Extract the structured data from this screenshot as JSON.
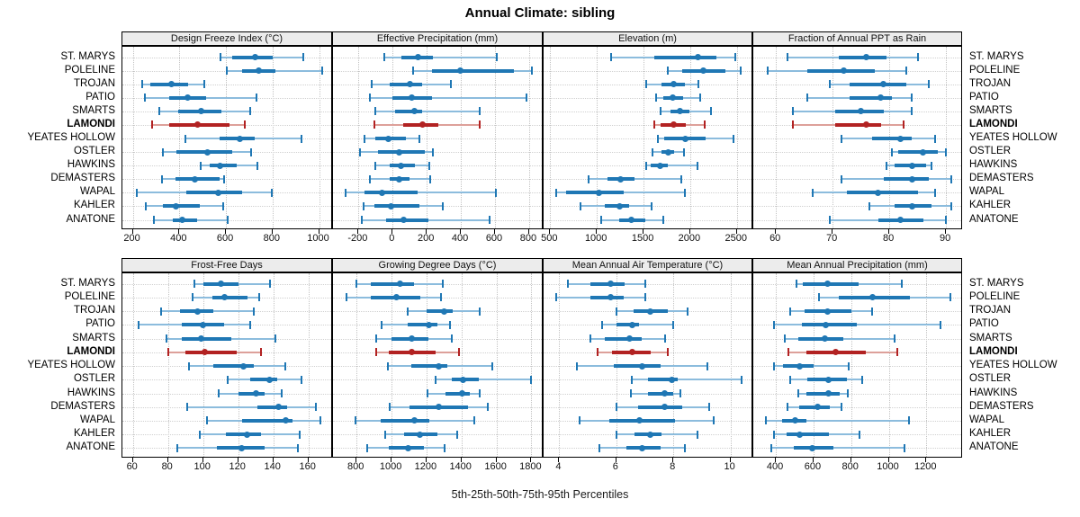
{
  "title": "Annual Climate: sibling",
  "footer": "5th-25th-50th-75th-95th Percentiles",
  "colors": {
    "series_blue": "#1f77b4",
    "series_blue_light": "#8cbcdd",
    "highlight_red": "#b22222",
    "highlight_red_light": "#dda09a",
    "grid": "#c9c9c9",
    "strip_bg": "#ececec",
    "border": "#000000"
  },
  "chart_data": {
    "type": "trellis-percentile-interval",
    "percentiles_shown": [
      5,
      25,
      50,
      75,
      95
    ],
    "legend_note": "dot = 50th percentile, thick bar = 25th-75th, thin whisker = 5th-95th",
    "stations": [
      "ST. MARYS",
      "POLELINE",
      "TROJAN",
      "PATIO",
      "SMARTS",
      "LAMONDI",
      "YEATES HOLLOW",
      "OSTLER",
      "HAWKINS",
      "DEMASTERS",
      "WAPAL",
      "KAHLER",
      "ANATONE"
    ],
    "highlight_station": "LAMONDI",
    "panels": [
      {
        "title": "Design Freeze Index (°C)",
        "ticks": [
          200,
          400,
          600,
          800,
          1000
        ],
        "domain": [
          155,
          1060
        ],
        "values": [
          [
            577,
            626,
            727,
            801,
            933
          ],
          [
            603,
            671,
            742,
            814,
            1012
          ],
          [
            240,
            274,
            364,
            438,
            505
          ],
          [
            253,
            354,
            434,
            516,
            732
          ],
          [
            315,
            393,
            494,
            580,
            704
          ],
          [
            283,
            357,
            477,
            617,
            680
          ],
          [
            425,
            574,
            658,
            723,
            924
          ],
          [
            328,
            386,
            522,
            626,
            706
          ],
          [
            493,
            529,
            574,
            645,
            736
          ],
          [
            326,
            383,
            467,
            574,
            590
          ],
          [
            218,
            429,
            565,
            671,
            797
          ],
          [
            257,
            328,
            383,
            486,
            587
          ],
          [
            292,
            370,
            412,
            477,
            606
          ]
        ]
      },
      {
        "title": "Effective Precipitation (mm)",
        "ticks": [
          -200,
          0,
          200,
          400,
          600,
          800
        ],
        "domain": [
          -350,
          885
        ],
        "values": [
          [
            -50,
            50,
            150,
            235,
            610
          ],
          [
            120,
            230,
            395,
            710,
            815
          ],
          [
            -125,
            -20,
            100,
            170,
            340
          ],
          [
            -135,
            0,
            110,
            230,
            785
          ],
          [
            -100,
            15,
            125,
            175,
            510
          ],
          [
            -105,
            60,
            175,
            270,
            510
          ],
          [
            -165,
            -100,
            -25,
            75,
            155
          ],
          [
            -190,
            -85,
            37,
            190,
            235
          ],
          [
            -100,
            -20,
            50,
            130,
            214
          ],
          [
            -133,
            -16,
            37,
            97,
            218
          ],
          [
            -275,
            -165,
            -60,
            145,
            605
          ],
          [
            -170,
            -110,
            -10,
            155,
            295
          ],
          [
            -180,
            -40,
            65,
            210,
            570
          ]
        ]
      },
      {
        "title": "Elevation (m)",
        "ticks": [
          500,
          1000,
          1500,
          2000,
          2500
        ],
        "domain": [
          430,
          2675
        ],
        "values": [
          [
            1150,
            1615,
            2080,
            2280,
            2480
          ],
          [
            1760,
            1910,
            2140,
            2380,
            2540
          ],
          [
            1530,
            1695,
            1825,
            1940,
            2085
          ],
          [
            1635,
            1710,
            1810,
            1920,
            2110
          ],
          [
            1680,
            1790,
            1890,
            1990,
            2220
          ],
          [
            1610,
            1680,
            1825,
            1955,
            2150
          ],
          [
            1655,
            1725,
            1950,
            2165,
            2460
          ],
          [
            1600,
            1695,
            1765,
            1825,
            1930
          ],
          [
            1525,
            1580,
            1680,
            1760,
            2080
          ],
          [
            915,
            1110,
            1255,
            1400,
            1905
          ],
          [
            560,
            670,
            1020,
            1290,
            1940
          ],
          [
            825,
            1080,
            1245,
            1340,
            1590
          ],
          [
            1050,
            1240,
            1370,
            1515,
            1710
          ]
        ]
      },
      {
        "title": "Fraction of Annual PPT as Rain",
        "ticks": [
          60,
          70,
          80,
          90
        ],
        "domain": [
          56,
          93
        ],
        "values": [
          [
            62,
            71,
            76,
            79.5,
            85
          ],
          [
            58.5,
            65.5,
            72,
            77.5,
            83
          ],
          [
            69.5,
            73,
            79,
            83,
            87
          ],
          [
            65.5,
            73,
            78.5,
            80.5,
            84
          ],
          [
            63,
            70.5,
            75,
            79,
            84
          ],
          [
            63,
            70.5,
            76,
            78.5,
            82.5
          ],
          [
            71.5,
            77,
            82,
            84,
            88
          ],
          [
            80.5,
            81.5,
            86,
            88.5,
            90
          ],
          [
            79.5,
            81,
            84,
            86.5,
            87.5
          ],
          [
            71.5,
            79,
            84,
            87,
            91
          ],
          [
            66.5,
            72.5,
            78,
            85,
            88
          ],
          [
            76.5,
            81,
            84,
            87.5,
            91
          ],
          [
            69.5,
            78,
            82,
            86,
            90
          ]
        ]
      },
      {
        "title": "Frost-Free Days",
        "ticks": [
          60,
          80,
          100,
          120,
          140,
          160
        ],
        "domain": [
          54,
          174
        ],
        "values": [
          [
            95,
            100,
            110,
            120,
            138
          ],
          [
            94,
            105,
            112,
            125,
            132
          ],
          [
            76,
            87,
            97,
            106,
            129
          ],
          [
            63,
            88,
            100,
            112,
            127
          ],
          [
            79,
            88,
            99,
            116,
            141
          ],
          [
            80,
            90,
            101,
            119,
            133
          ],
          [
            92,
            106,
            123,
            129,
            147
          ],
          [
            114,
            127,
            138,
            142,
            156
          ],
          [
            109,
            120,
            130,
            135,
            145
          ],
          [
            91,
            131,
            143,
            148,
            164
          ],
          [
            102,
            122,
            147,
            151,
            167
          ],
          [
            98,
            113,
            125,
            133,
            155
          ],
          [
            85,
            108,
            122,
            135,
            154
          ]
        ]
      },
      {
        "title": "Growing Degree Days (°C)",
        "ticks": [
          800,
          1000,
          1200,
          1400,
          1600,
          1800
        ],
        "domain": [
          665,
          1870
        ],
        "values": [
          [
            800,
            880,
            1050,
            1130,
            1295
          ],
          [
            740,
            880,
            1030,
            1165,
            1285
          ],
          [
            1090,
            1200,
            1300,
            1350,
            1505
          ],
          [
            945,
            1090,
            1215,
            1260,
            1335
          ],
          [
            910,
            1000,
            1115,
            1210,
            1345
          ],
          [
            910,
            985,
            1115,
            1250,
            1385
          ],
          [
            980,
            1115,
            1270,
            1320,
            1575
          ],
          [
            1250,
            1345,
            1410,
            1500,
            1800
          ],
          [
            1205,
            1310,
            1405,
            1450,
            1505
          ],
          [
            990,
            1105,
            1270,
            1440,
            1550
          ],
          [
            795,
            940,
            1130,
            1215,
            1475
          ],
          [
            965,
            1070,
            1160,
            1265,
            1375
          ],
          [
            860,
            985,
            1095,
            1185,
            1305
          ]
        ]
      },
      {
        "title": "Mean Annual Air Temperature (°C)",
        "ticks": [
          4,
          6,
          8,
          10
        ],
        "domain": [
          3.45,
          10.8
        ],
        "values": [
          [
            4.3,
            5.1,
            5.8,
            6.3,
            7.0
          ],
          [
            3.9,
            5.1,
            5.8,
            6.25,
            7.0
          ],
          [
            6.0,
            6.6,
            7.2,
            7.8,
            8.5
          ],
          [
            5.5,
            6.0,
            6.55,
            6.8,
            8.0
          ],
          [
            5.1,
            5.6,
            6.45,
            6.9,
            7.7
          ],
          [
            5.35,
            5.85,
            6.55,
            7.2,
            7.8
          ],
          [
            4.6,
            5.9,
            6.9,
            7.55,
            9.2
          ],
          [
            6.55,
            7.1,
            7.95,
            8.15,
            10.4
          ],
          [
            6.5,
            7.1,
            7.7,
            8.0,
            8.25
          ],
          [
            6.0,
            6.75,
            7.7,
            8.3,
            9.25
          ],
          [
            4.7,
            5.75,
            6.8,
            8.05,
            9.4
          ],
          [
            6.0,
            6.65,
            7.2,
            7.6,
            8.85
          ],
          [
            5.4,
            6.35,
            6.9,
            7.55,
            8.4
          ]
        ]
      },
      {
        "title": "Mean Annual Precipitation (mm)",
        "ticks": [
          400,
          600,
          800,
          1000,
          1200
        ],
        "domain": [
          280,
          1395
        ],
        "values": [
          [
            510,
            545,
            675,
            840,
            1070
          ],
          [
            627,
            733,
            912,
            1112,
            1330
          ],
          [
            477,
            552,
            675,
            800,
            910
          ],
          [
            392,
            540,
            665,
            830,
            1275
          ],
          [
            448,
            520,
            660,
            760,
            1030
          ],
          [
            467,
            560,
            720,
            880,
            1045
          ],
          [
            392,
            440,
            525,
            600,
            785
          ],
          [
            477,
            568,
            680,
            776,
            860
          ],
          [
            520,
            563,
            680,
            741,
            780
          ],
          [
            461,
            525,
            624,
            688,
            750
          ],
          [
            349,
            435,
            504,
            563,
            1107
          ],
          [
            392,
            456,
            525,
            680,
            845
          ],
          [
            376,
            493,
            592,
            707,
            1085
          ]
        ]
      }
    ]
  }
}
